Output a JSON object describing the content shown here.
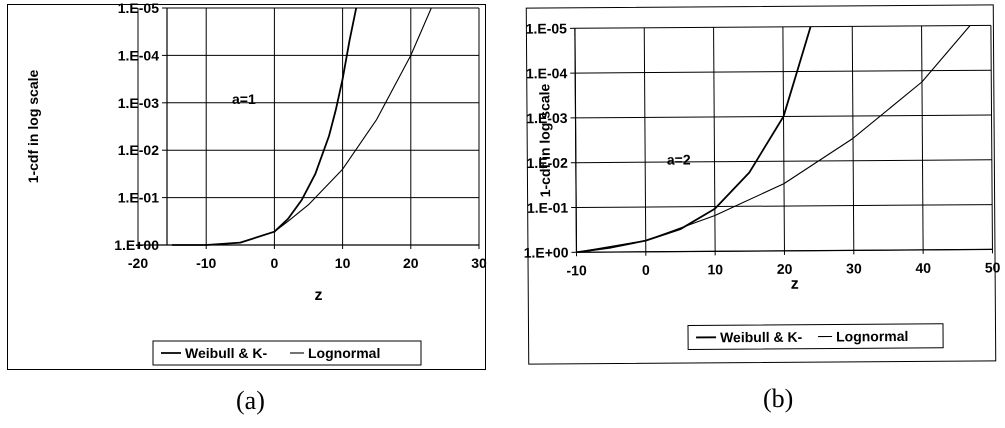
{
  "chart_data": [
    {
      "type": "line",
      "panel": "a",
      "ylabel": "1-cdf in log scale",
      "xlabel": "z",
      "annotation": "a=1",
      "xlim": [
        -20,
        30
      ],
      "xticks": [
        "-20",
        "-10",
        "0",
        "10",
        "20",
        "30"
      ],
      "yticks": [
        "1.E+00",
        "1.E-01",
        "1.E-02",
        "1.E-03",
        "1.E-04",
        "1.E-05"
      ],
      "ylim_decades": [
        0,
        5
      ],
      "grid": true,
      "legend_position": "bottom",
      "series": [
        {
          "name": "Weibull & K-",
          "x": [
            -15,
            -10,
            -5,
            0,
            2,
            4,
            6,
            8,
            9,
            10,
            11,
            12
          ],
          "decades": [
            0.0,
            0.0,
            0.05,
            0.28,
            0.55,
            0.95,
            1.5,
            2.3,
            2.85,
            3.5,
            4.3,
            5.0
          ]
        },
        {
          "name": "Lognormal",
          "x": [
            -15,
            -10,
            -5,
            0,
            2,
            5,
            10,
            15,
            20,
            23
          ],
          "decades": [
            0.0,
            0.0,
            0.05,
            0.28,
            0.5,
            0.85,
            1.6,
            2.65,
            4.0,
            5.0
          ]
        }
      ]
    },
    {
      "type": "line",
      "panel": "b",
      "ylabel": "1-cdf in log scale",
      "xlabel": "z",
      "annotation": "a=2",
      "xlim": [
        -10,
        50
      ],
      "xticks": [
        "-10",
        "0",
        "10",
        "20",
        "30",
        "40",
        "50"
      ],
      "yticks": [
        "1.E+00",
        "1.E-01",
        "1.E-02",
        "1.E-03",
        "1.E-04",
        "1.E-05"
      ],
      "ylim_decades": [
        0,
        5
      ],
      "grid": true,
      "legend_position": "bottom",
      "series": [
        {
          "name": "Weibull & K-",
          "x": [
            -10,
            -5,
            0,
            5,
            10,
            15,
            18,
            20,
            22,
            24
          ],
          "decades": [
            0.0,
            0.1,
            0.25,
            0.5,
            0.95,
            1.75,
            2.5,
            3.0,
            4.0,
            5.0
          ]
        },
        {
          "name": "Lognormal",
          "x": [
            -10,
            0,
            10,
            20,
            30,
            40,
            47
          ],
          "decades": [
            0.0,
            0.25,
            0.8,
            1.5,
            2.5,
            3.75,
            5.0
          ]
        }
      ]
    }
  ],
  "captions": [
    "(a)",
    "(b)"
  ],
  "colors": {
    "axis": "#000000",
    "grid": "#000000",
    "curve": "#000000"
  }
}
